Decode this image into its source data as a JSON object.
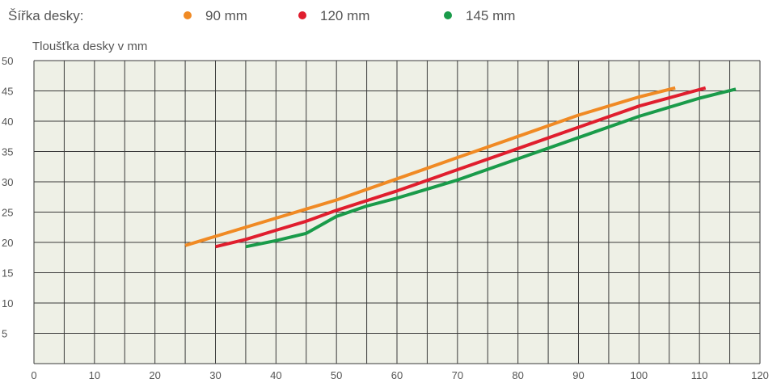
{
  "chart_data": {
    "type": "line",
    "legend_title": "Šířka desky:",
    "ylabel": "Tloušťka desky v mm",
    "xlabel": "",
    "xlim": [
      0,
      120
    ],
    "ylim": [
      0,
      50
    ],
    "x_ticks": [
      "0",
      "10",
      "20",
      "30",
      "40",
      "50",
      "60",
      "70",
      "80",
      "90",
      "100",
      "110",
      "120"
    ],
    "y_ticks": [
      "50",
      "45",
      "40",
      "35",
      "30",
      "25",
      "20",
      "15",
      "10",
      "5"
    ],
    "grid": true,
    "legend_position": "top",
    "series": [
      {
        "name": "90 mm",
        "color": "#f08a24",
        "x": [
          25,
          30,
          40,
          50,
          60,
          70,
          80,
          90,
          100,
          106
        ],
        "y": [
          19.5,
          21,
          24,
          27,
          30.5,
          34,
          37.5,
          41,
          44,
          45.5
        ]
      },
      {
        "name": "120 mm",
        "color": "#e01e2e",
        "x": [
          30,
          35,
          40,
          45,
          50,
          60,
          70,
          80,
          90,
          100,
          111
        ],
        "y": [
          19.3,
          20.5,
          22,
          23.5,
          25.3,
          28.5,
          32,
          35.5,
          39,
          42.5,
          45.5
        ]
      },
      {
        "name": "145 mm",
        "color": "#1a9b4a",
        "x": [
          35,
          40,
          45,
          50,
          55,
          60,
          70,
          80,
          90,
          100,
          110,
          116
        ],
        "y": [
          19.3,
          20.3,
          21.5,
          24.3,
          26,
          27.3,
          30.3,
          33.8,
          37.3,
          40.8,
          43.8,
          45.3
        ]
      }
    ]
  }
}
